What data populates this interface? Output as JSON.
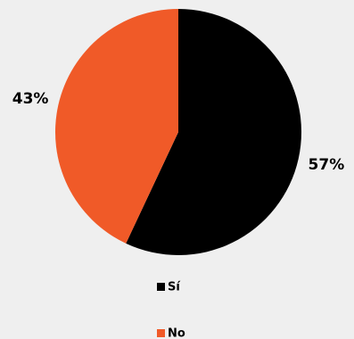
{
  "chart_data": {
    "type": "pie",
    "categories": [
      "Sí",
      "No"
    ],
    "values": [
      57,
      43
    ],
    "value_labels": [
      "57%",
      "43%"
    ],
    "colors": [
      "#000000",
      "#f05a28"
    ]
  }
}
